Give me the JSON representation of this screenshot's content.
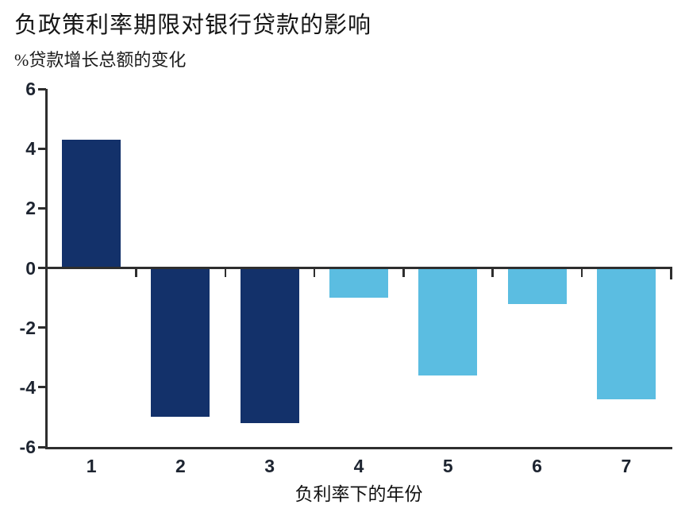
{
  "chart_data": {
    "type": "bar",
    "title": "负政策利率期限对银行贷款的影响",
    "subtitle": "%贷款增长总额的变化",
    "xlabel": "负利率下的年份",
    "ylabel": "",
    "categories": [
      "1",
      "2",
      "3",
      "4",
      "5",
      "6",
      "7"
    ],
    "values": [
      4.3,
      -5.0,
      -5.2,
      -1.0,
      -3.6,
      -1.2,
      -4.4
    ],
    "bar_colors": [
      "#13316A",
      "#13316A",
      "#13316A",
      "#5BBDE1",
      "#5BBDE1",
      "#5BBDE1",
      "#5BBDE1"
    ],
    "yticks": [
      6,
      4,
      2,
      0,
      -2,
      -4,
      -6
    ],
    "ytick_labels": [
      "6",
      "4",
      "2",
      "0",
      "-2",
      "-4",
      "-6"
    ],
    "ylim": [
      -6,
      6
    ],
    "grid": false,
    "legend": null,
    "colors": {
      "dark_navy": "#13316A",
      "light_blue": "#5BBDE1",
      "axis": "#2e2e2e",
      "text": "#1d2430"
    }
  }
}
